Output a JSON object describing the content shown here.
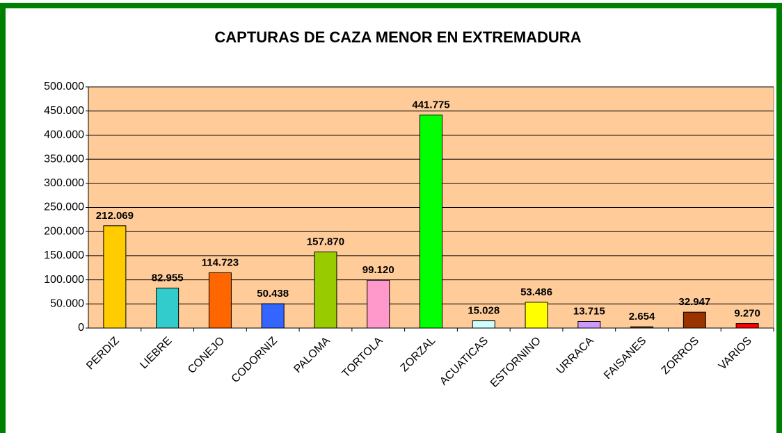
{
  "chart_data": {
    "type": "bar",
    "title": "CAPTURAS DE CAZA MENOR EN EXTREMADURA",
    "categories": [
      "PERDIZ",
      "LIEBRE",
      "CONEJO",
      "CODORNIZ",
      "PALOMA",
      "TORTOLA",
      "ZORZAL",
      "ACUATICAS",
      "ESTORNINO",
      "URRACA",
      "FAISANES",
      "ZORROS",
      "VARIOS"
    ],
    "values": [
      212069,
      82955,
      114723,
      50438,
      157870,
      99120,
      441775,
      15028,
      53486,
      13715,
      2654,
      32947,
      9270
    ],
    "value_labels": [
      "212.069",
      "82.955",
      "114.723",
      "50.438",
      "157.870",
      "99.120",
      "441.775",
      "15.028",
      "53.486",
      "13.715",
      "2.654",
      "32.947",
      "9.270"
    ],
    "colors": [
      "#ffcc00",
      "#33cccc",
      "#ff6600",
      "#3366ff",
      "#99cc00",
      "#ff99cc",
      "#00ff00",
      "#ccffff",
      "#ffff00",
      "#cc99ff",
      "#663300",
      "#993300",
      "#ff0000"
    ],
    "ylim": [
      0,
      500000
    ],
    "yticks": [
      {
        "value": 0,
        "label": "0"
      },
      {
        "value": 50000,
        "label": "50.000"
      },
      {
        "value": 100000,
        "label": "100.000"
      },
      {
        "value": 150000,
        "label": "150.000"
      },
      {
        "value": 200000,
        "label": "200.000"
      },
      {
        "value": 250000,
        "label": "250.000"
      },
      {
        "value": 300000,
        "label": "300.000"
      },
      {
        "value": 350000,
        "label": "350.000"
      },
      {
        "value": 400000,
        "label": "400.000"
      },
      {
        "value": 450000,
        "label": "450.000"
      },
      {
        "value": 500000,
        "label": "500.000"
      }
    ],
    "grid": true
  }
}
